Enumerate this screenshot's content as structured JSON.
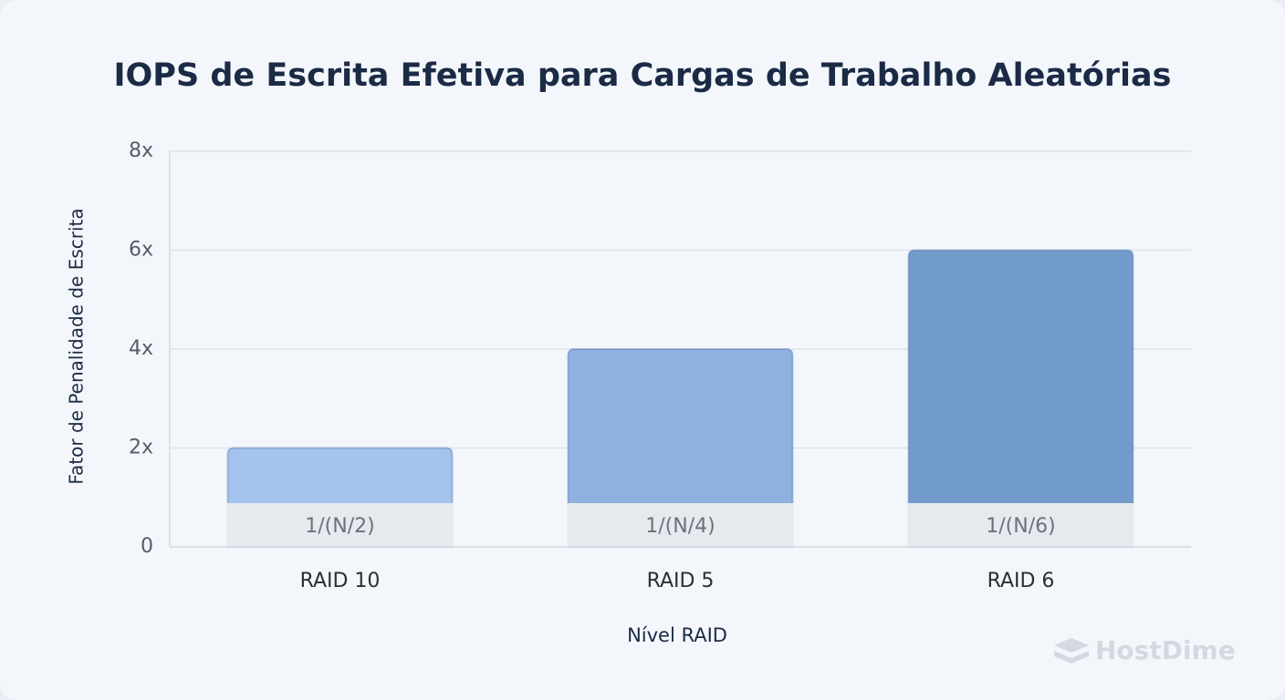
{
  "chart_data": {
    "type": "bar",
    "title": "IOPS de Escrita Efetiva para Cargas de Trabalho Aleatórias",
    "x_label": "Nível RAID",
    "y_label": "Fator de Penalidade de Escrita",
    "categories": [
      "RAID 10",
      "RAID 5",
      "RAID 6"
    ],
    "values": [
      2,
      4,
      6
    ],
    "colors": [
      "#a4c4ef",
      "#8fb1df",
      "#729ccb"
    ],
    "bar_annotations": [
      "1/(N/2)",
      "1/(N/4)",
      "1/(N/6)"
    ],
    "ylim": [
      0,
      8
    ],
    "yticks": [
      0,
      {
        "value": 2,
        "label": "2x"
      },
      {
        "value": 4,
        "label": "4x"
      },
      {
        "value": 6,
        "label": "6x"
      },
      {
        "value": 8,
        "label": "8x"
      }
    ],
    "grid": true,
    "watermark": "HostDime"
  }
}
